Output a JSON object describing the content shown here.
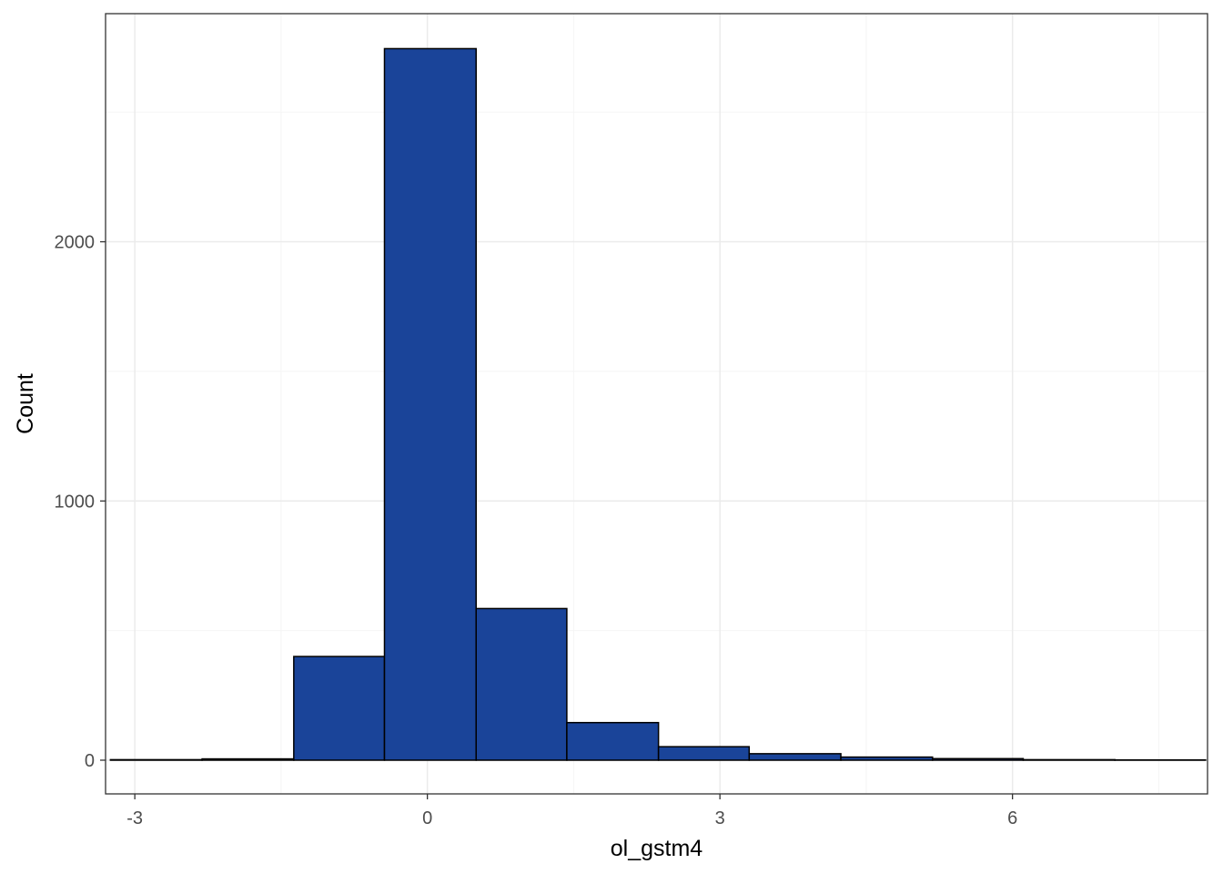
{
  "chart_data": {
    "type": "bar",
    "subtype": "histogram",
    "xlabel": "ol_gstm4",
    "ylabel": "Count",
    "xlim": [
      -3.3,
      8.0
    ],
    "ylim": [
      -130,
      2880
    ],
    "x_ticks": [
      -3,
      0,
      3,
      6
    ],
    "x_tick_labels": [
      "-3",
      "0",
      "3",
      "6"
    ],
    "y_ticks": [
      0,
      1000,
      2000
    ],
    "y_tick_labels": [
      "0",
      "1000",
      "2000"
    ],
    "grid": true,
    "legend": "none",
    "bins": [
      {
        "x0": -3.25,
        "x1": -2.31,
        "count": 2
      },
      {
        "x0": -2.31,
        "x1": -1.37,
        "count": 5
      },
      {
        "x0": -1.37,
        "x1": -0.44,
        "count": 400
      },
      {
        "x0": -0.44,
        "x1": 0.5,
        "count": 2745
      },
      {
        "x0": 0.5,
        "x1": 1.43,
        "count": 585
      },
      {
        "x0": 1.43,
        "x1": 2.37,
        "count": 145
      },
      {
        "x0": 2.37,
        "x1": 3.3,
        "count": 52
      },
      {
        "x0": 3.3,
        "x1": 4.24,
        "count": 25
      },
      {
        "x0": 4.24,
        "x1": 5.18,
        "count": 12
      },
      {
        "x0": 5.18,
        "x1": 6.11,
        "count": 6
      },
      {
        "x0": 6.11,
        "x1": 7.05,
        "count": 2
      },
      {
        "x0": 7.05,
        "x1": 7.98,
        "count": 1
      }
    ],
    "colors": {
      "bar_fill": "#1a4499",
      "bar_stroke": "#000000",
      "panel_border": "#333333",
      "grid_major": "#ebebeb",
      "grid_minor": "#f5f5f5"
    }
  }
}
